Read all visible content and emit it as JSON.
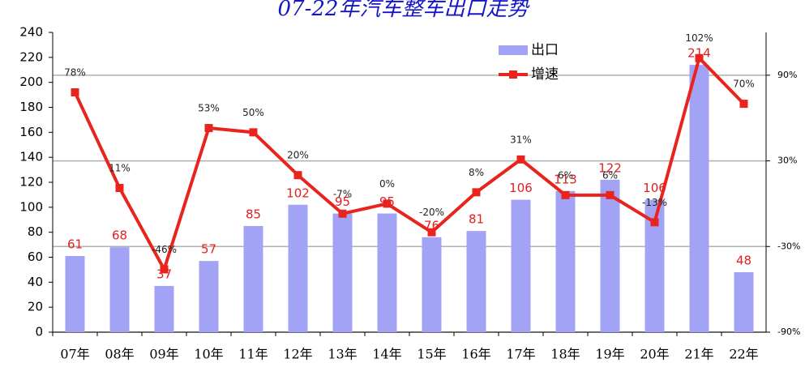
{
  "chart_data": {
    "type": "bar",
    "title": "07-22年汽车整车出口走势",
    "categories": [
      "07年",
      "08年",
      "09年",
      "10年",
      "11年",
      "12年",
      "13年",
      "14年",
      "15年",
      "16年",
      "17年",
      "18年",
      "19年",
      "20年",
      "21年",
      "22年"
    ],
    "series": [
      {
        "name": "出口",
        "type": "bar",
        "color": "#a3a3f5",
        "label_color": "#e02020",
        "values": [
          61,
          68,
          37,
          57,
          85,
          102,
          95,
          95,
          76,
          81,
          106,
          113,
          122,
          106,
          214,
          48
        ]
      },
      {
        "name": "增速",
        "type": "line",
        "axis": "y2",
        "color": "#e8241c",
        "label_color": "#222222",
        "values": [
          78,
          11,
          -46,
          53,
          50,
          20,
          -7,
          0,
          -20,
          8,
          31,
          6,
          6,
          -13,
          102,
          70
        ],
        "value_labels": [
          "78%",
          "11%",
          "-46%",
          "53%",
          "50%",
          "20%",
          "-7%",
          "0%",
          "-20%",
          "8%",
          "31%",
          "6%",
          "6%",
          "-13%",
          "102%",
          "70%"
        ]
      }
    ],
    "ylim": [
      0,
      240
    ],
    "yticks": [
      0,
      20,
      40,
      60,
      80,
      100,
      120,
      140,
      160,
      180,
      200,
      220,
      240
    ],
    "y2lim": [
      -90,
      120
    ],
    "y2ticks": [
      {
        "value": -90,
        "label": "-90%"
      },
      {
        "value": -30,
        "label": "-30%"
      },
      {
        "value": 30,
        "label": "30%"
      },
      {
        "value": 90,
        "label": "90%"
      }
    ],
    "grid": "y2",
    "legend": "top-right"
  }
}
